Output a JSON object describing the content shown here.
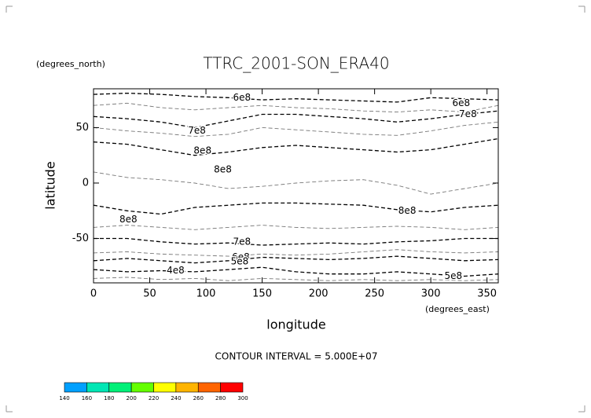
{
  "chart_data": {
    "type": "contour",
    "title": "TTRC_2001-SON_ERA40",
    "y_units": "(degrees_north)",
    "x_units": "(degrees_east)",
    "ylabel": "latitude",
    "xlabel": "longitude",
    "info": "CONTOUR INTERVAL = 5.000E+07",
    "xlim": [
      0,
      360
    ],
    "ylim": [
      -90,
      85
    ],
    "xticks": [
      0,
      50,
      100,
      150,
      200,
      250,
      300,
      350
    ],
    "yticks": [
      -50,
      0,
      50
    ],
    "contour_lon": [
      0,
      30,
      60,
      90,
      120,
      150,
      180,
      210,
      240,
      270,
      300,
      330,
      360
    ],
    "contours": [
      {
        "level": 600000000,
        "color": "#000000",
        "lat": [
          80,
          81,
          80,
          78,
          77,
          75,
          76,
          75,
          74,
          73,
          77,
          76,
          75
        ]
      },
      {
        "level": 650000000,
        "color": "#777777",
        "lat": [
          70,
          72,
          68,
          66,
          68,
          70,
          68,
          67,
          65,
          64,
          66,
          64,
          70
        ]
      },
      {
        "level": 700000000,
        "color": "#000000",
        "lat": [
          60,
          58,
          55,
          50,
          56,
          62,
          62,
          60,
          58,
          55,
          58,
          62,
          65
        ]
      },
      {
        "level": 750000000,
        "color": "#777777",
        "lat": [
          50,
          47,
          45,
          42,
          44,
          50,
          48,
          46,
          44,
          43,
          47,
          52,
          55
        ]
      },
      {
        "level": 800000000,
        "color": "#000000",
        "lat": [
          37,
          35,
          30,
          25,
          28,
          32,
          34,
          32,
          30,
          28,
          30,
          35,
          40
        ]
      },
      {
        "level": 850000000,
        "color": "#777777",
        "lat": [
          10,
          5,
          3,
          0,
          -5,
          -3,
          0,
          2,
          3,
          -2,
          -10,
          -5,
          0
        ]
      },
      {
        "level": 800000000,
        "color": "#000000",
        "lat": [
          -20,
          -25,
          -28,
          -22,
          -20,
          -18,
          -18,
          -19,
          -20,
          -24,
          -26,
          -22,
          -20
        ]
      },
      {
        "level": 750000000,
        "color": "#777777",
        "lat": [
          -40,
          -38,
          -40,
          -42,
          -40,
          -38,
          -40,
          -41,
          -40,
          -39,
          -40,
          -42,
          -40
        ]
      },
      {
        "level": 700000000,
        "color": "#000000",
        "lat": [
          -50,
          -50,
          -53,
          -55,
          -54,
          -56,
          -55,
          -54,
          -55,
          -53,
          -52,
          -50,
          -50
        ]
      },
      {
        "level": 650000000,
        "color": "#777777",
        "lat": [
          -63,
          -62,
          -64,
          -65,
          -66,
          -64,
          -65,
          -64,
          -62,
          -60,
          -62,
          -63,
          -62
        ]
      },
      {
        "level": 600000000,
        "color": "#000000",
        "lat": [
          -70,
          -68,
          -70,
          -72,
          -70,
          -67,
          -68,
          -69,
          -68,
          -66,
          -68,
          -70,
          -69
        ]
      },
      {
        "level": 500000000,
        "color": "#000000",
        "lat": [
          -78,
          -80,
          -79,
          -80,
          -78,
          -76,
          -80,
          -82,
          -82,
          -80,
          -82,
          -84,
          -82
        ]
      },
      {
        "level": 450000000,
        "color": "#777777",
        "lat": [
          -86,
          -85,
          -87,
          -86,
          -88,
          -86,
          -87,
          -88,
          -87,
          -88,
          -87,
          -88,
          -87
        ]
      }
    ],
    "contour_labels": [
      {
        "text": "6e8",
        "value": 600000000,
        "lon": 132,
        "lat": 77
      },
      {
        "text": "6e8",
        "value": 600000000,
        "lon": 327,
        "lat": 72
      },
      {
        "text": "7e8",
        "value": 700000000,
        "lon": 333,
        "lat": 62
      },
      {
        "text": "7e8",
        "value": 700000000,
        "lon": 92,
        "lat": 47
      },
      {
        "text": "8e8",
        "value": 800000000,
        "lon": 97,
        "lat": 29
      },
      {
        "text": "8e8",
        "value": 800000000,
        "lon": 115,
        "lat": 12
      },
      {
        "text": "8e8",
        "value": 800000000,
        "lon": 31,
        "lat": -33
      },
      {
        "text": "8e8",
        "value": 800000000,
        "lon": 279,
        "lat": -25
      },
      {
        "text": "7e8",
        "value": 700000000,
        "lon": 132,
        "lat": -53
      },
      {
        "text": "6e8",
        "value": 600000000,
        "lon": 131,
        "lat": -67
      },
      {
        "text": "5e8",
        "value": 500000000,
        "lon": 130,
        "lat": -71
      },
      {
        "text": "4e8",
        "value": 400000000,
        "lon": 73,
        "lat": -79
      },
      {
        "text": "5e8",
        "value": 500000000,
        "lon": 320,
        "lat": -84
      }
    ],
    "colorbar": {
      "levels": [
        140,
        160,
        180,
        200,
        220,
        240,
        260,
        280,
        300
      ],
      "colors": [
        "#00a0ff",
        "#00e6b4",
        "#00f078",
        "#64ff00",
        "#ffff00",
        "#ffb400",
        "#ff6400",
        "#ff0000"
      ]
    }
  }
}
